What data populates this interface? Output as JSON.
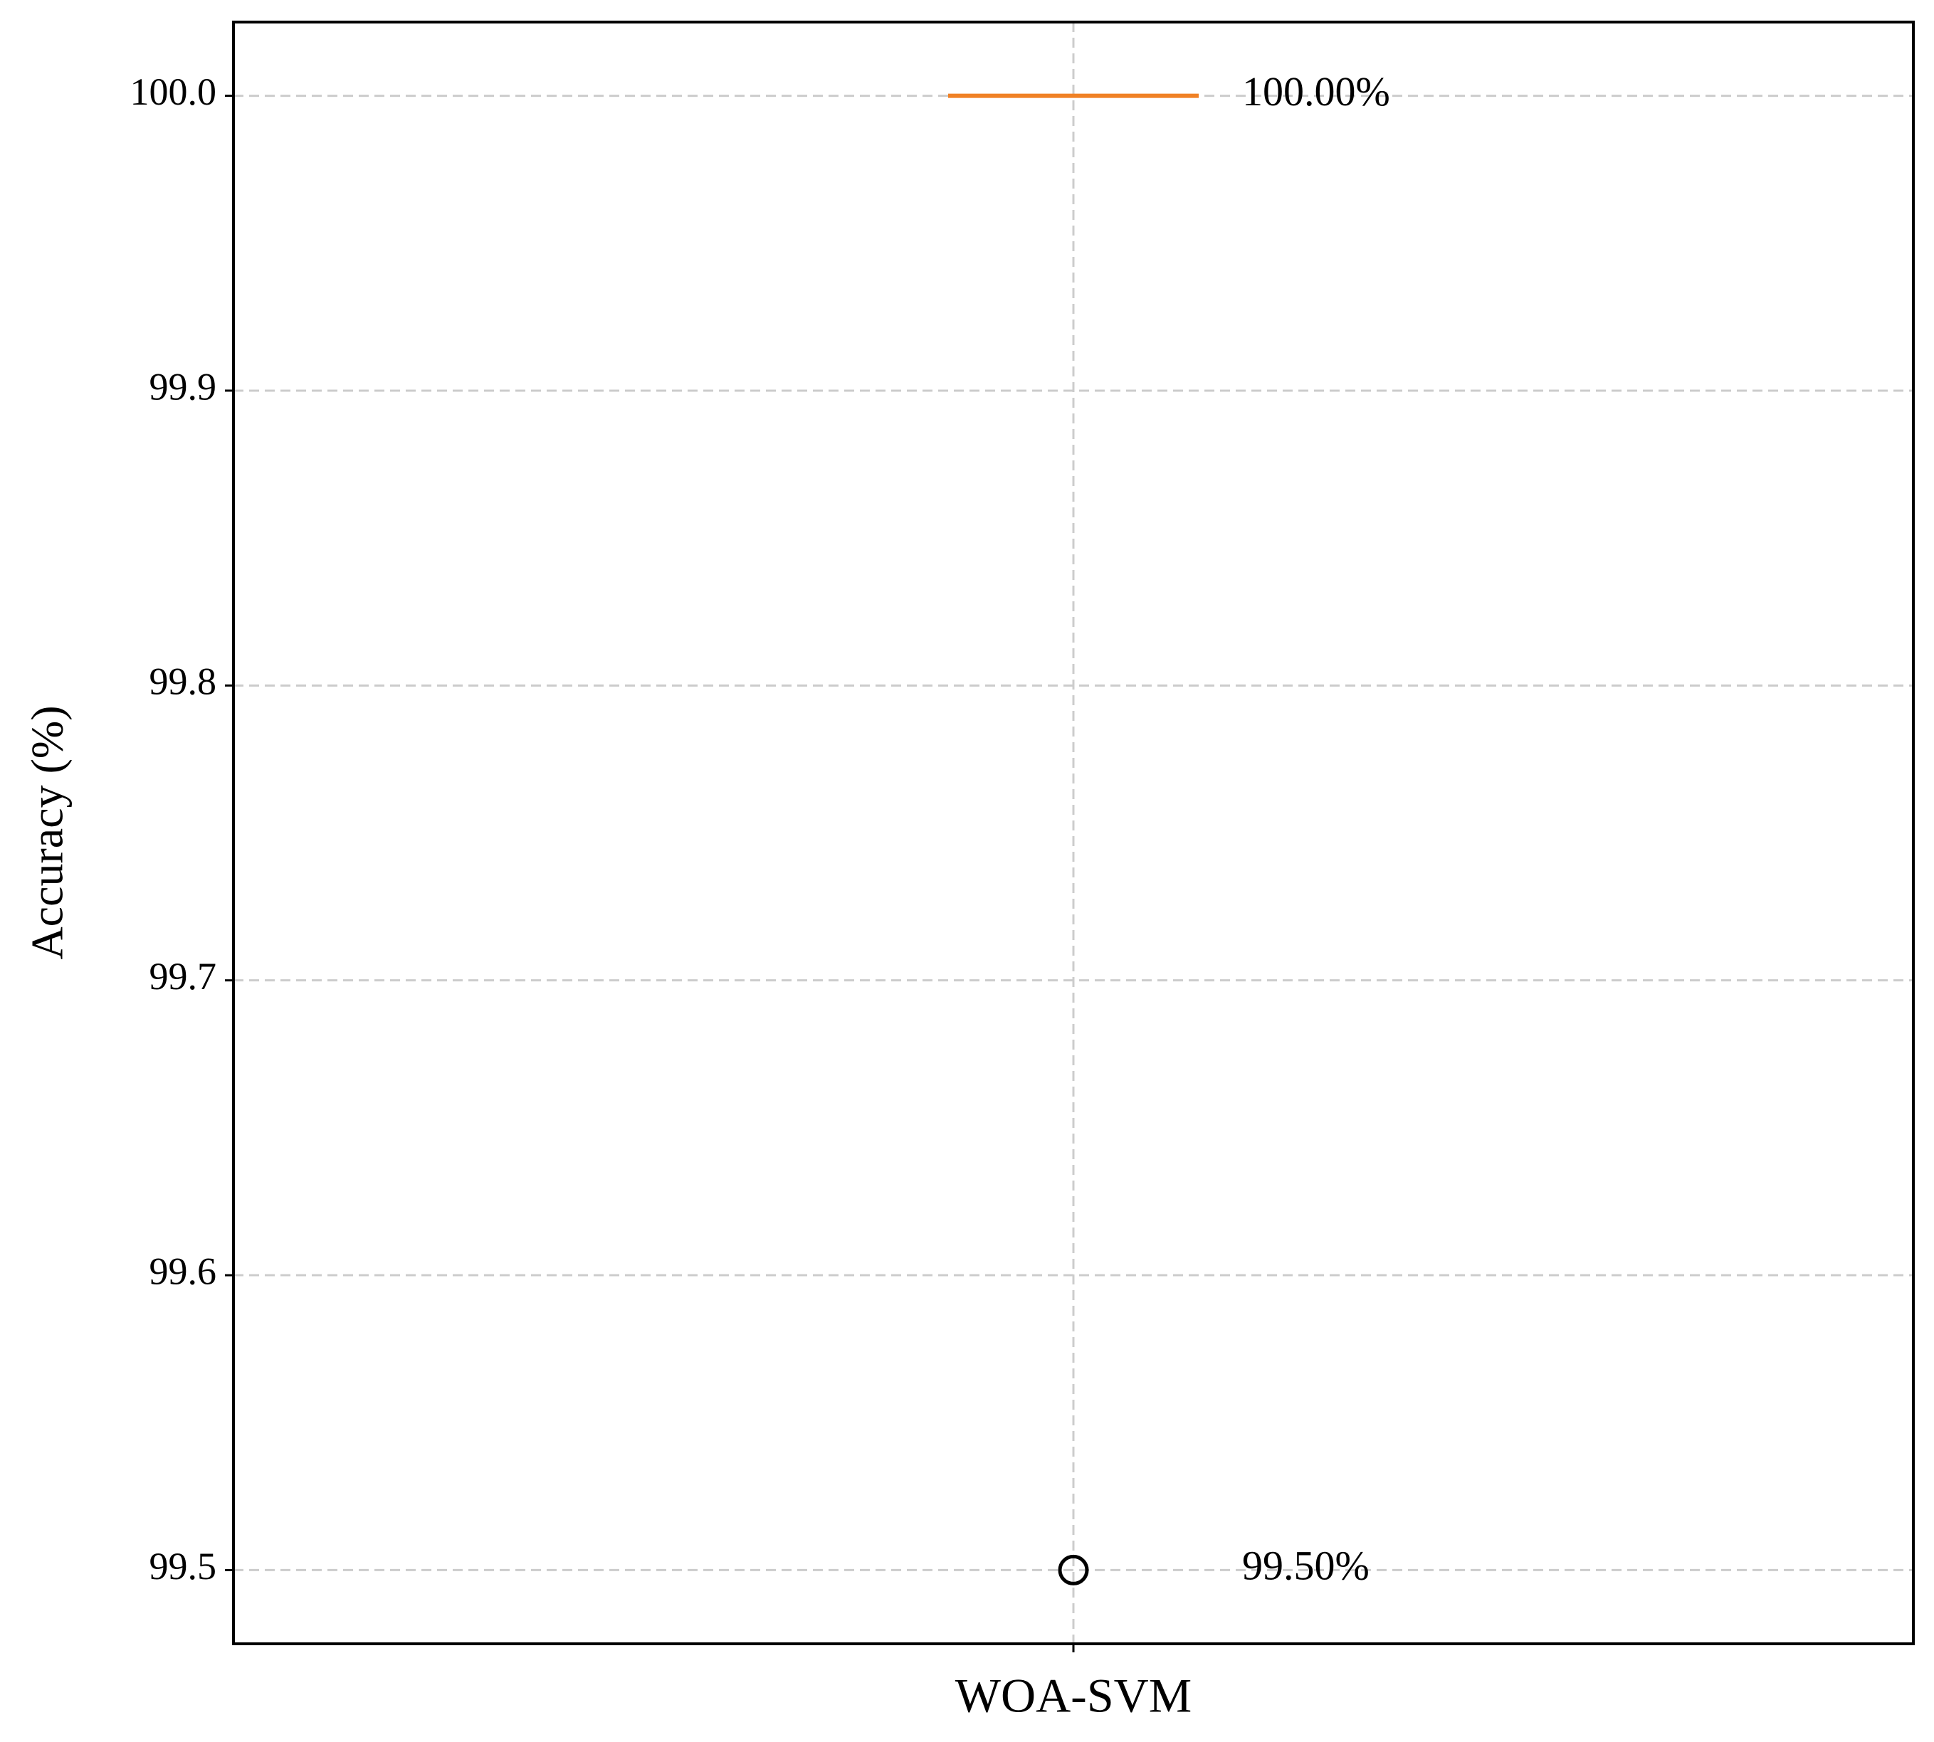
{
  "chart_data": {
    "type": "box",
    "y_label": "Accuracy (%)",
    "categories": [
      "WOA-SVM"
    ],
    "boxes": [
      {
        "q1": 100,
        "median": 100,
        "q3": 100,
        "whisker_low": 100,
        "whisker_high": 100,
        "outliers": [
          99.5
        ]
      }
    ],
    "median_color": "#f08125",
    "annotations": [
      {
        "text": "100.00%",
        "value": 100
      },
      {
        "text": "99.50%",
        "value": 99.5
      }
    ],
    "ylim": [
      99.475,
      100.025
    ],
    "yticks": [
      99.5,
      99.6,
      99.7,
      99.8,
      99.9,
      {
        "value": 100,
        "label": "100.0"
      }
    ],
    "grid": true
  }
}
